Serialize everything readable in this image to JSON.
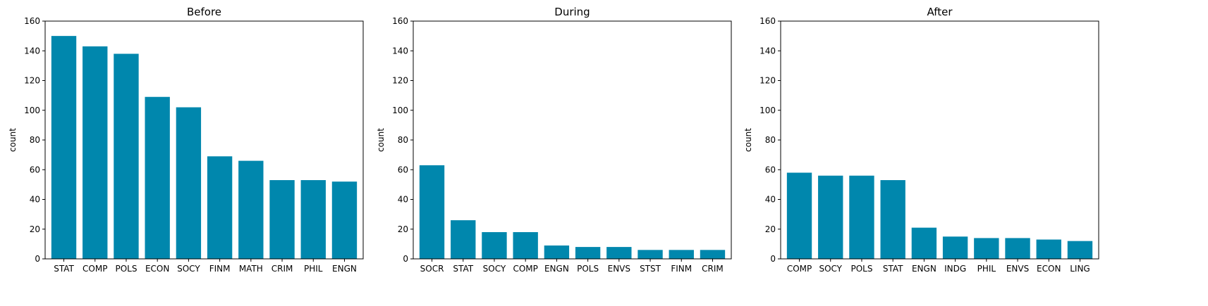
{
  "bar_color": "#0087ad",
  "chart_data": [
    {
      "type": "bar",
      "title": "Before",
      "xlabel": "",
      "ylabel": "count",
      "ylim": [
        0,
        160
      ],
      "yticks": [
        "0",
        "20",
        "40",
        "60",
        "80",
        "100",
        "120",
        "140",
        "160"
      ],
      "categories": [
        "STAT",
        "COMP",
        "POLS",
        "ECON",
        "SOCY",
        "FINM",
        "MATH",
        "CRIM",
        "PHIL",
        "ENGN"
      ],
      "values": [
        150,
        143,
        138,
        109,
        102,
        69,
        66,
        53,
        53,
        52
      ]
    },
    {
      "type": "bar",
      "title": "During",
      "xlabel": "",
      "ylabel": "count",
      "ylim": [
        0,
        160
      ],
      "yticks": [
        "0",
        "20",
        "40",
        "60",
        "80",
        "100",
        "120",
        "140",
        "160"
      ],
      "categories": [
        "SOCR",
        "STAT",
        "SOCY",
        "COMP",
        "ENGN",
        "POLS",
        "ENVS",
        "STST",
        "FINM",
        "CRIM"
      ],
      "values": [
        63,
        26,
        18,
        18,
        9,
        8,
        8,
        6,
        6,
        6
      ]
    },
    {
      "type": "bar",
      "title": "After",
      "xlabel": "",
      "ylabel": "count",
      "ylim": [
        0,
        160
      ],
      "yticks": [
        "0",
        "20",
        "40",
        "60",
        "80",
        "100",
        "120",
        "140",
        "160"
      ],
      "categories": [
        "COMP",
        "SOCY",
        "POLS",
        "STAT",
        "ENGN",
        "INDG",
        "PHIL",
        "ENVS",
        "ECON",
        "LING"
      ],
      "values": [
        58,
        56,
        56,
        53,
        21,
        15,
        14,
        14,
        13,
        12
      ]
    }
  ]
}
